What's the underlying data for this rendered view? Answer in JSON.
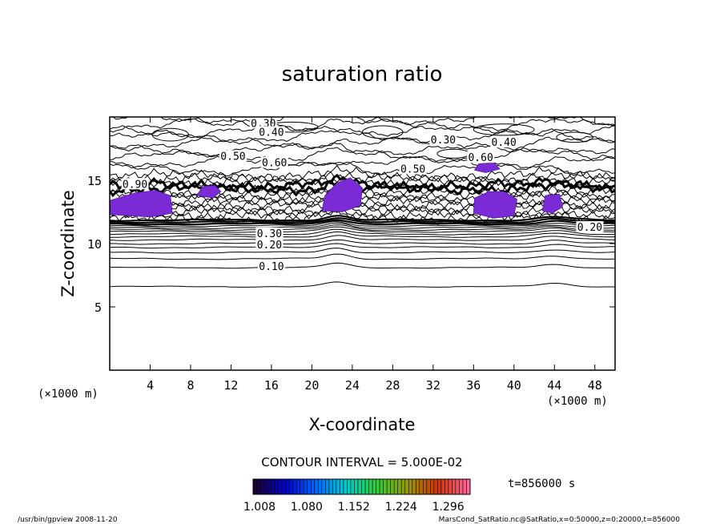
{
  "chart_data": {
    "type": "contour",
    "title": "saturation ratio",
    "xlabel": "X-coordinate",
    "ylabel": "Z-coordinate",
    "x_unit_left": "(×1000 m)",
    "x_unit_right": "(×1000 m)",
    "xlim": [
      0,
      50
    ],
    "ylim": [
      0,
      20
    ],
    "x_ticks": [
      "4",
      "8",
      "12",
      "16",
      "20",
      "24",
      "28",
      "32",
      "36",
      "40",
      "44",
      "48"
    ],
    "x_tick_values": [
      4,
      8,
      12,
      16,
      20,
      24,
      28,
      32,
      36,
      40,
      44,
      48
    ],
    "y_ticks": [
      "5",
      "10",
      "15"
    ],
    "y_tick_values": [
      5,
      10,
      15
    ],
    "contour_interval_text": "CONTOUR INTERVAL = 5.000E-02",
    "contour_labels": [
      {
        "text": "0.30",
        "x": 15.2,
        "z": 19.4
      },
      {
        "text": "0.40",
        "x": 16.0,
        "z": 18.7
      },
      {
        "text": "0.50",
        "x": 12.2,
        "z": 16.8
      },
      {
        "text": "0.60",
        "x": 16.3,
        "z": 16.3
      },
      {
        "text": "0.30",
        "x": 33.0,
        "z": 18.1
      },
      {
        "text": "0.40",
        "x": 39.0,
        "z": 17.9
      },
      {
        "text": "0.60",
        "x": 36.7,
        "z": 16.7
      },
      {
        "text": "0.50",
        "x": 30.0,
        "z": 15.8
      },
      {
        "text": "0.90",
        "x": 2.5,
        "z": 14.6
      },
      {
        "text": "0.30",
        "x": 15.8,
        "z": 10.7
      },
      {
        "text": "0.20",
        "x": 15.8,
        "z": 9.8
      },
      {
        "text": "0.10",
        "x": 16.0,
        "z": 8.1
      },
      {
        "text": "0.20",
        "x": 47.5,
        "z": 11.2
      }
    ],
    "filled_regions_note": "shaded where saturation ratio > 1",
    "colorbar": {
      "tick_labels": [
        "1.008",
        "1.080",
        "1.152",
        "1.224",
        "1.296"
      ],
      "range": [
        1.008,
        1.296
      ],
      "colors": [
        "#1a0033",
        "#0000cc",
        "#0066ff",
        "#00cccc",
        "#33cc33",
        "#999900",
        "#cc3300",
        "#ff6699"
      ]
    },
    "time_label": "t=856000 s"
  },
  "footer": {
    "left": "/usr/bin/gpview   2008-11-20",
    "right": "MarsCond_SatRatio.nc@SatRatio,x=0:50000,z=0:20000,t=856000"
  }
}
